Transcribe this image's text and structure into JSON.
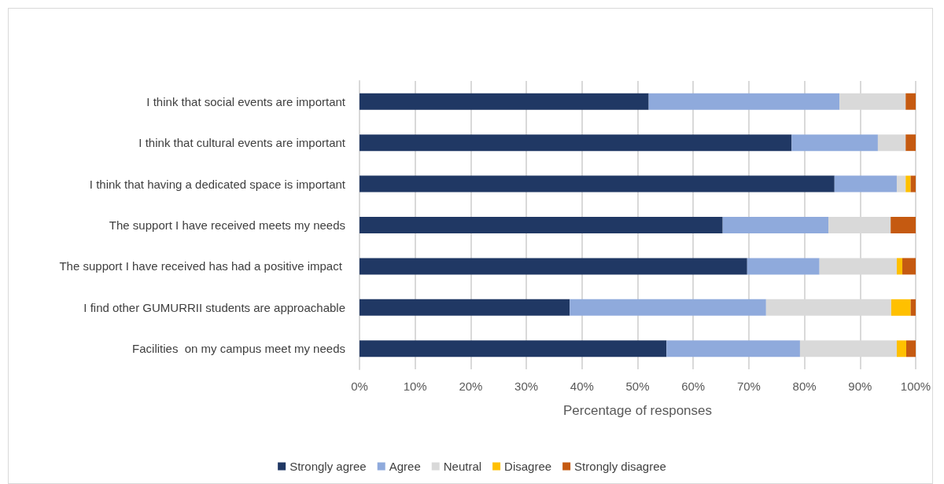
{
  "chart_data": {
    "type": "bar",
    "orientation": "horizontal",
    "stacked": true,
    "xlabel": "Percentage of responses",
    "categories": [
      "I think that social events are important",
      "I think that cultural events are important",
      "I think that having a dedicated space is important",
      "The support I have received meets my needs",
      "The support I have received has had a positive impact ",
      "I find other GUMURRII students are approachable",
      "Facilities  on my campus meet my needs"
    ],
    "series": [
      {
        "name": "Strongly agree",
        "color": "#203864",
        "values": [
          52,
          77.7,
          85.4,
          65.3,
          69.7,
          37.8,
          55.2
        ]
      },
      {
        "name": "Agree",
        "color": "#8faadc",
        "values": [
          34.3,
          15.5,
          11.2,
          19,
          13,
          35.3,
          24
        ]
      },
      {
        "name": "Neutral",
        "color": "#d9d9d9",
        "values": [
          11.9,
          5,
          1.6,
          11.2,
          13.9,
          22.5,
          17.4
        ]
      },
      {
        "name": "Disagree",
        "color": "#ffc000",
        "values": [
          0,
          0,
          0.9,
          0,
          1,
          3.5,
          1.7
        ]
      },
      {
        "name": "Strongly disagree",
        "color": "#c55a11",
        "values": [
          1.8,
          1.8,
          0.9,
          4.5,
          2.4,
          0.9,
          1.7
        ]
      }
    ],
    "xlim": [
      0,
      100
    ],
    "xticks": [
      {
        "value": 0,
        "label": "0%"
      },
      {
        "value": 10,
        "label": "10%"
      },
      {
        "value": 20,
        "label": "20%"
      },
      {
        "value": 30,
        "label": "30%"
      },
      {
        "value": 40,
        "label": "40%"
      },
      {
        "value": 50,
        "label": "50%"
      },
      {
        "value": 60,
        "label": "60%"
      },
      {
        "value": 70,
        "label": "70%"
      },
      {
        "value": 80,
        "label": "80%"
      },
      {
        "value": 90,
        "label": "90%"
      },
      {
        "value": 100,
        "label": "100%"
      }
    ],
    "grid": "x",
    "legend": "bottom"
  }
}
